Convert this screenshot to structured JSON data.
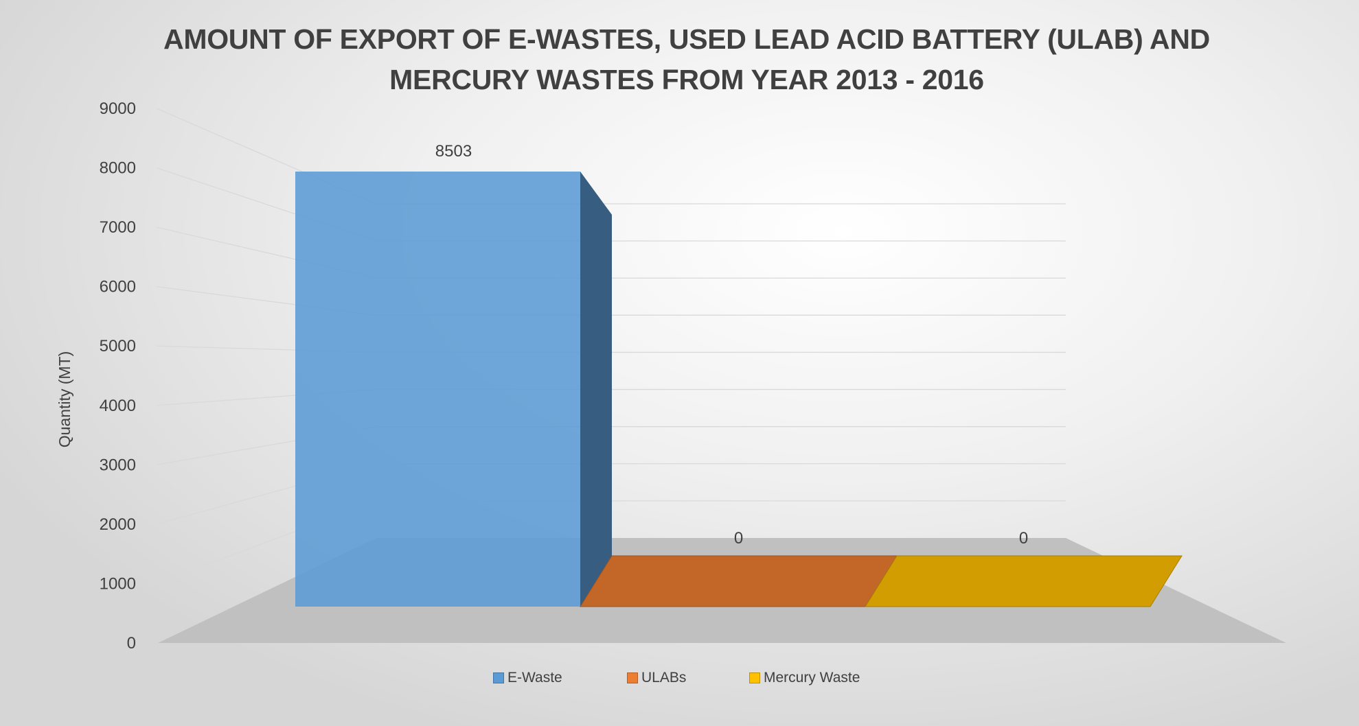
{
  "chart_data": {
    "type": "bar",
    "title_lines": [
      "AMOUNT OF EXPORT OF E-WASTES, USED LEAD ACID BATTERY (ULAB) AND",
      "MERCURY WASTES FROM YEAR 2013 - 2016"
    ],
    "ylabel": "Quantity (MT)",
    "ylim": [
      0,
      9000
    ],
    "yticks": [
      0,
      1000,
      2000,
      3000,
      4000,
      5000,
      6000,
      7000,
      8000,
      9000
    ],
    "grid": true,
    "legend_position": "bottom",
    "series": [
      {
        "name": "E-Waste",
        "value": 8503,
        "label": "8503",
        "color": "#5b9bd5"
      },
      {
        "name": "ULABs",
        "value": 0,
        "label": "0",
        "color": "#ed7d31"
      },
      {
        "name": "Mercury Waste",
        "value": 0,
        "label": "0",
        "color": "#ffc000"
      }
    ]
  }
}
